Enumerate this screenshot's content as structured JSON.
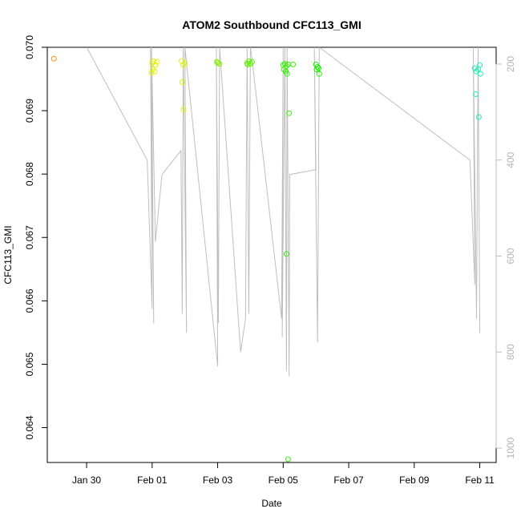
{
  "chart_data": {
    "type": "scatter",
    "title": "ATOM2 Southbound CFC113_GMI",
    "xlabel": "Date",
    "ylabel": "CFC113_GMI",
    "x_ticks": [
      "Jan 30",
      "Feb 01",
      "Feb 03",
      "Feb 05",
      "Feb 07",
      "Feb 09",
      "Feb 11"
    ],
    "x_tick_values": [
      0.0,
      2.0,
      4.0,
      6.0,
      8.0,
      10.0,
      12.0
    ],
    "x_range": [
      -1.2,
      12.5
    ],
    "y_ticks": [
      "0.064",
      "0.065",
      "0.066",
      "0.067",
      "0.068",
      "0.069",
      "0.070"
    ],
    "y_tick_values": [
      0.064,
      0.065,
      0.066,
      0.067,
      0.068,
      0.069,
      0.07
    ],
    "ylim": [
      0.06345,
      0.07
    ],
    "right_axis": {
      "ticks": [
        "200",
        "400",
        "600",
        "800",
        "1000"
      ],
      "tick_values": [
        200,
        400,
        600,
        800,
        1000
      ],
      "range": [
        165,
        1030
      ],
      "line_color": "#bebebe",
      "tick_color": "#b4b4b4"
    },
    "grid": false,
    "point_style": "open-circle",
    "points": [
      {
        "x": -1.0,
        "y": 0.06982,
        "color": "#ff8c00"
      },
      {
        "x": 2.0,
        "y": 0.06975,
        "color": "#e5f200"
      },
      {
        "x": 2.05,
        "y": 0.06978,
        "color": "#e5f200"
      },
      {
        "x": 2.1,
        "y": 0.06972,
        "color": "#e5f200"
      },
      {
        "x": 2.02,
        "y": 0.06965,
        "color": "#e5f200"
      },
      {
        "x": 2.08,
        "y": 0.06962,
        "color": "#e5f200"
      },
      {
        "x": 1.98,
        "y": 0.0696,
        "color": "#e5f200"
      },
      {
        "x": 2.15,
        "y": 0.06977,
        "color": "#e5f200"
      },
      {
        "x": 2.9,
        "y": 0.06978,
        "color": "#dff200"
      },
      {
        "x": 2.95,
        "y": 0.06972,
        "color": "#dff200"
      },
      {
        "x": 3.0,
        "y": 0.06975,
        "color": "#dff200"
      },
      {
        "x": 2.92,
        "y": 0.06945,
        "color": "#dff200"
      },
      {
        "x": 2.96,
        "y": 0.06902,
        "color": "#dff200"
      },
      {
        "x": 4.0,
        "y": 0.06976,
        "color": "#7ff200"
      },
      {
        "x": 4.05,
        "y": 0.06974,
        "color": "#7ff200"
      },
      {
        "x": 3.98,
        "y": 0.06977,
        "color": "#7ff200"
      },
      {
        "x": 4.9,
        "y": 0.06975,
        "color": "#5af200"
      },
      {
        "x": 4.95,
        "y": 0.06978,
        "color": "#5af200"
      },
      {
        "x": 5.0,
        "y": 0.06974,
        "color": "#5af200"
      },
      {
        "x": 5.05,
        "y": 0.06977,
        "color": "#5af200"
      },
      {
        "x": 4.92,
        "y": 0.06973,
        "color": "#5af200"
      },
      {
        "x": 6.0,
        "y": 0.06972,
        "color": "#35f200"
      },
      {
        "x": 6.05,
        "y": 0.06974,
        "color": "#35f200"
      },
      {
        "x": 6.1,
        "y": 0.0697,
        "color": "#35f200"
      },
      {
        "x": 6.02,
        "y": 0.06965,
        "color": "#35f200"
      },
      {
        "x": 6.12,
        "y": 0.06958,
        "color": "#35f200"
      },
      {
        "x": 6.08,
        "y": 0.06962,
        "color": "#35f200"
      },
      {
        "x": 6.15,
        "y": 0.06973,
        "color": "#35f200"
      },
      {
        "x": 6.18,
        "y": 0.06896,
        "color": "#35f200"
      },
      {
        "x": 6.1,
        "y": 0.06674,
        "color": "#35f200"
      },
      {
        "x": 6.15,
        "y": 0.0635,
        "color": "#35f200"
      },
      {
        "x": 6.3,
        "y": 0.06973,
        "color": "#35f200"
      },
      {
        "x": 7.0,
        "y": 0.06973,
        "color": "#19f200"
      },
      {
        "x": 7.05,
        "y": 0.06969,
        "color": "#19f200"
      },
      {
        "x": 7.02,
        "y": 0.06965,
        "color": "#19f200"
      },
      {
        "x": 7.08,
        "y": 0.06967,
        "color": "#19f200"
      },
      {
        "x": 7.1,
        "y": 0.06958,
        "color": "#19f200"
      },
      {
        "x": 11.85,
        "y": 0.06967,
        "color": "#1af2b4"
      },
      {
        "x": 11.9,
        "y": 0.06962,
        "color": "#1af2b4"
      },
      {
        "x": 11.95,
        "y": 0.06965,
        "color": "#1af2b4"
      },
      {
        "x": 12.0,
        "y": 0.06972,
        "color": "#1af2b4"
      },
      {
        "x": 11.88,
        "y": 0.06926,
        "color": "#1af2b4"
      },
      {
        "x": 11.97,
        "y": 0.0689,
        "color": "#1af2b4"
      },
      {
        "x": 12.02,
        "y": 0.06958,
        "color": "#1af2b4"
      }
    ],
    "profile_line": {
      "color": "#bebebe",
      "x_axis_units": "date",
      "y_axis_units": "right",
      "x": [
        0.0,
        1.85,
        2.0,
        1.95,
        2.05,
        1.98,
        2.1,
        2.3,
        2.88,
        2.92,
        2.95,
        3.05,
        3.0,
        4.0,
        3.96,
        4.02,
        4.06,
        4.7,
        4.85,
        4.9,
        4.95,
        5.0,
        5.05,
        5.95,
        6.0,
        5.97,
        6.05,
        6.1,
        6.12,
        6.18,
        6.2,
        7.0,
        6.95,
        7.05,
        7.1,
        11.7,
        11.85,
        11.8,
        11.9,
        11.95,
        12.0
      ],
      "y": [
        165,
        400,
        710,
        165,
        740,
        165,
        570,
        430,
        380,
        720,
        165,
        760,
        165,
        830,
        165,
        740,
        165,
        800,
        730,
        165,
        720,
        165,
        190,
        730,
        165,
        770,
        165,
        840,
        165,
        850,
        430,
        420,
        165,
        780,
        165,
        400,
        660,
        165,
        730,
        165,
        760
      ]
    }
  }
}
